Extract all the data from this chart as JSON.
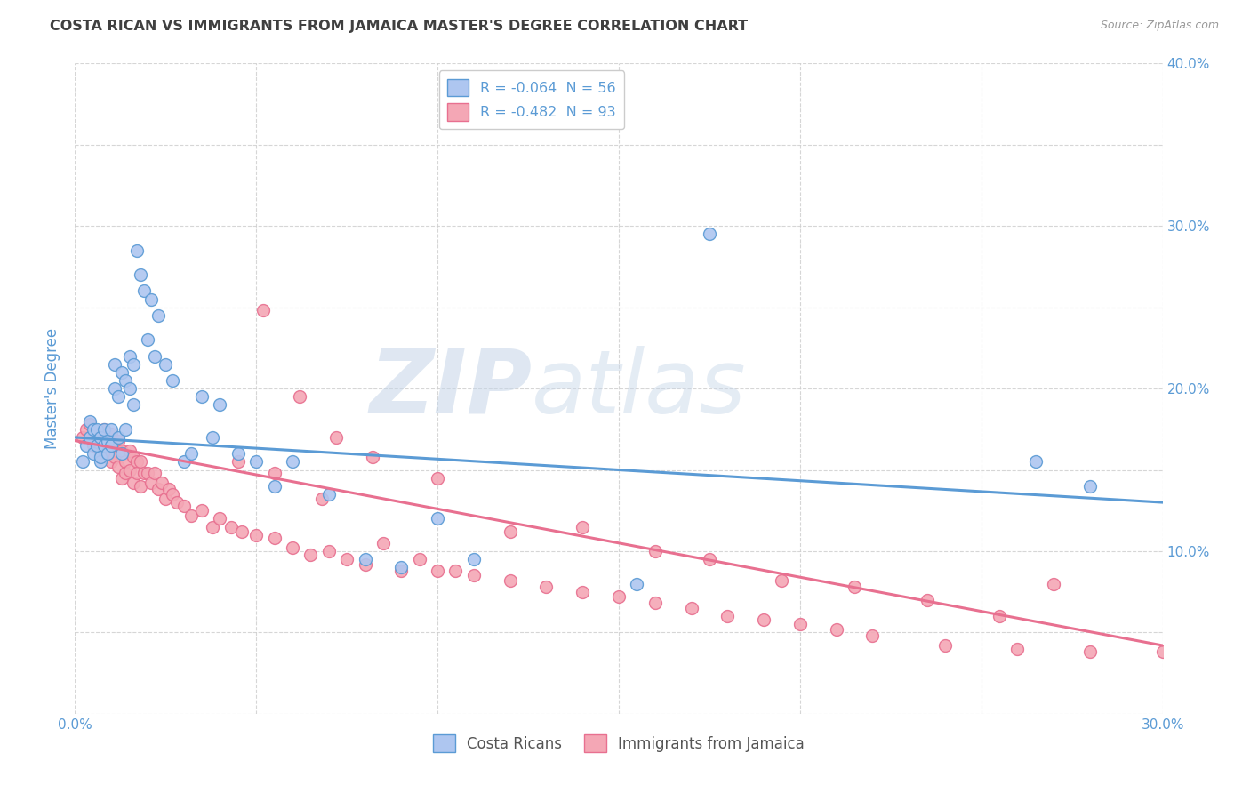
{
  "title": "COSTA RICAN VS IMMIGRANTS FROM JAMAICA MASTER'S DEGREE CORRELATION CHART",
  "source": "Source: ZipAtlas.com",
  "ylabel": "Master's Degree",
  "xmin": 0.0,
  "xmax": 0.3,
  "ymin": 0.0,
  "ymax": 0.4,
  "xticks": [
    0.0,
    0.05,
    0.1,
    0.15,
    0.2,
    0.25,
    0.3
  ],
  "yticks": [
    0.0,
    0.1,
    0.2,
    0.3,
    0.4
  ],
  "ytick_labels_right": [
    "",
    "10.0%",
    "20.0%",
    "30.0%",
    "40.0%"
  ],
  "xtick_labels": [
    "0.0%",
    "",
    "",
    "",
    "",
    "",
    "30.0%"
  ],
  "legend_box_entries": [
    {
      "r": "R = -0.064",
      "n": "N = 56",
      "color": "#aec6f0"
    },
    {
      "r": "R = -0.482",
      "n": "N = 93",
      "color": "#f4a7b5"
    }
  ],
  "bottom_legend": [
    "Costa Ricans",
    "Immigrants from Jamaica"
  ],
  "blue_color": "#5b9bd5",
  "pink_color": "#e87090",
  "blue_fill": "#aec6f0",
  "pink_fill": "#f4a7b5",
  "watermark_zip": "ZIP",
  "watermark_atlas": "atlas",
  "blue_scatter_x": [
    0.002,
    0.003,
    0.004,
    0.004,
    0.005,
    0.005,
    0.006,
    0.006,
    0.007,
    0.007,
    0.007,
    0.008,
    0.008,
    0.009,
    0.009,
    0.01,
    0.01,
    0.011,
    0.011,
    0.012,
    0.012,
    0.013,
    0.013,
    0.014,
    0.014,
    0.015,
    0.015,
    0.016,
    0.016,
    0.017,
    0.018,
    0.019,
    0.02,
    0.021,
    0.022,
    0.023,
    0.025,
    0.027,
    0.03,
    0.032,
    0.035,
    0.038,
    0.04,
    0.045,
    0.05,
    0.055,
    0.06,
    0.07,
    0.08,
    0.09,
    0.1,
    0.11,
    0.155,
    0.175,
    0.265,
    0.28
  ],
  "blue_scatter_y": [
    0.155,
    0.165,
    0.17,
    0.18,
    0.175,
    0.16,
    0.165,
    0.175,
    0.17,
    0.155,
    0.158,
    0.165,
    0.175,
    0.168,
    0.16,
    0.175,
    0.165,
    0.2,
    0.215,
    0.17,
    0.195,
    0.16,
    0.21,
    0.175,
    0.205,
    0.22,
    0.2,
    0.215,
    0.19,
    0.285,
    0.27,
    0.26,
    0.23,
    0.255,
    0.22,
    0.245,
    0.215,
    0.205,
    0.155,
    0.16,
    0.195,
    0.17,
    0.19,
    0.16,
    0.155,
    0.14,
    0.155,
    0.135,
    0.095,
    0.09,
    0.12,
    0.095,
    0.08,
    0.295,
    0.155,
    0.14
  ],
  "pink_scatter_x": [
    0.002,
    0.003,
    0.004,
    0.005,
    0.005,
    0.006,
    0.006,
    0.007,
    0.007,
    0.008,
    0.008,
    0.009,
    0.009,
    0.01,
    0.01,
    0.011,
    0.011,
    0.012,
    0.012,
    0.013,
    0.013,
    0.014,
    0.014,
    0.015,
    0.015,
    0.016,
    0.016,
    0.017,
    0.017,
    0.018,
    0.018,
    0.019,
    0.02,
    0.021,
    0.022,
    0.023,
    0.024,
    0.025,
    0.026,
    0.027,
    0.028,
    0.03,
    0.032,
    0.035,
    0.038,
    0.04,
    0.043,
    0.046,
    0.05,
    0.055,
    0.06,
    0.065,
    0.07,
    0.075,
    0.08,
    0.09,
    0.1,
    0.11,
    0.12,
    0.13,
    0.14,
    0.15,
    0.16,
    0.17,
    0.18,
    0.19,
    0.2,
    0.21,
    0.22,
    0.24,
    0.26,
    0.28,
    0.3,
    0.052,
    0.062,
    0.072,
    0.082,
    0.1,
    0.12,
    0.14,
    0.16,
    0.175,
    0.195,
    0.215,
    0.235,
    0.255,
    0.27,
    0.045,
    0.055,
    0.068,
    0.085,
    0.095,
    0.105
  ],
  "pink_scatter_y": [
    0.17,
    0.175,
    0.178,
    0.17,
    0.165,
    0.172,
    0.168,
    0.165,
    0.16,
    0.175,
    0.162,
    0.168,
    0.16,
    0.172,
    0.155,
    0.165,
    0.158,
    0.168,
    0.152,
    0.162,
    0.145,
    0.155,
    0.148,
    0.162,
    0.15,
    0.158,
    0.142,
    0.155,
    0.148,
    0.155,
    0.14,
    0.148,
    0.148,
    0.142,
    0.148,
    0.138,
    0.142,
    0.132,
    0.138,
    0.135,
    0.13,
    0.128,
    0.122,
    0.125,
    0.115,
    0.12,
    0.115,
    0.112,
    0.11,
    0.108,
    0.102,
    0.098,
    0.1,
    0.095,
    0.092,
    0.088,
    0.088,
    0.085,
    0.082,
    0.078,
    0.075,
    0.072,
    0.068,
    0.065,
    0.06,
    0.058,
    0.055,
    0.052,
    0.048,
    0.042,
    0.04,
    0.038,
    0.038,
    0.248,
    0.195,
    0.17,
    0.158,
    0.145,
    0.112,
    0.115,
    0.1,
    0.095,
    0.082,
    0.078,
    0.07,
    0.06,
    0.08,
    0.155,
    0.148,
    0.132,
    0.105,
    0.095,
    0.088
  ],
  "blue_line_x": [
    0.0,
    0.3
  ],
  "blue_line_y": [
    0.17,
    0.13
  ],
  "pink_line_x": [
    0.0,
    0.3
  ],
  "pink_line_y": [
    0.168,
    0.042
  ],
  "background_color": "#ffffff",
  "grid_color": "#cccccc",
  "title_color": "#404040",
  "tick_label_color": "#5b9bd5"
}
